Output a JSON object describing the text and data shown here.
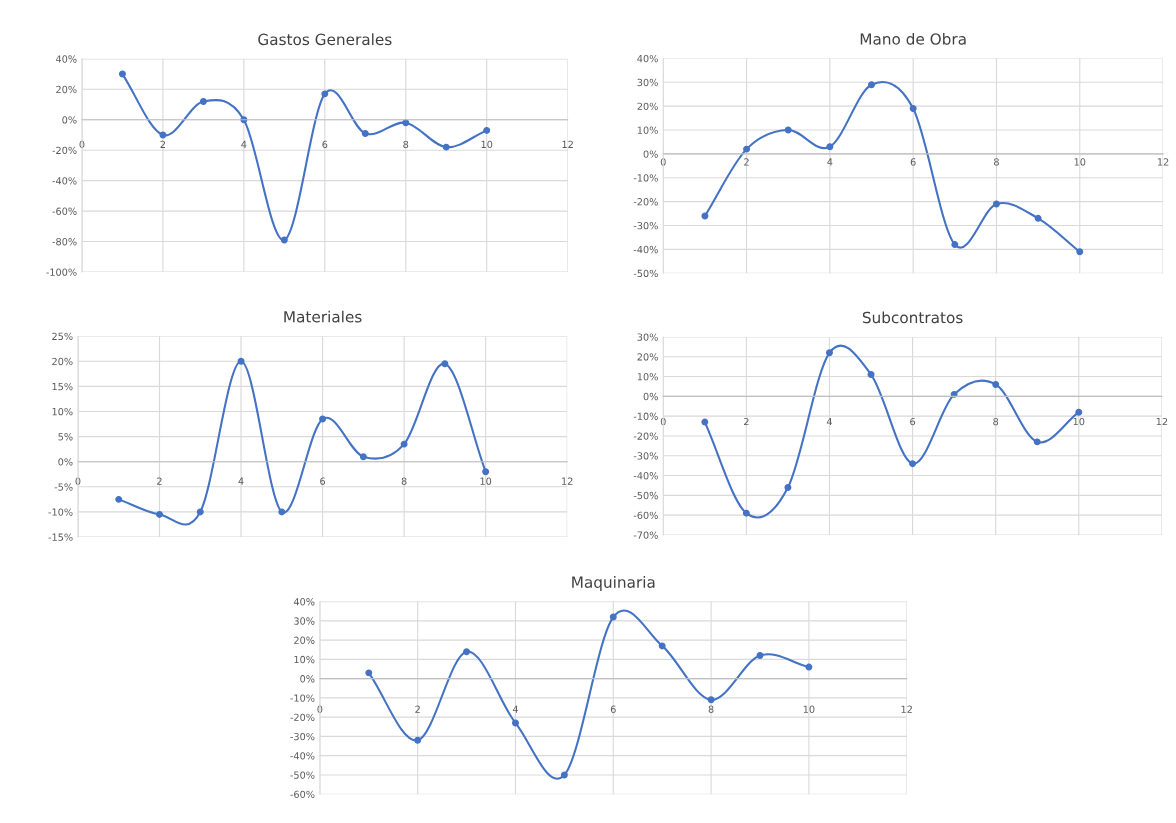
{
  "chart_data": [
    {
      "type": "line",
      "title": "Gastos Generales",
      "x": [
        1,
        2,
        3,
        4,
        5,
        6,
        7,
        8,
        9,
        10
      ],
      "series": [
        {
          "color": "#4472c4",
          "values": [
            30,
            -10,
            12,
            0,
            -79,
            17,
            -9,
            -2,
            -18,
            -7
          ]
        }
      ],
      "xlim": [
        0,
        12
      ],
      "xticks": [
        0,
        2,
        4,
        6,
        8,
        10,
        12
      ],
      "ylim": [
        -100,
        40
      ],
      "yticks": [
        {
          "value": -100,
          "label": "-100%"
        },
        {
          "value": -80,
          "label": "-80%"
        },
        {
          "value": -60,
          "label": "-60%"
        },
        {
          "value": -40,
          "label": "-40%"
        },
        {
          "value": -20,
          "label": "-20%"
        },
        {
          "value": 0,
          "label": "0%"
        },
        {
          "value": 20,
          "label": "20%"
        },
        {
          "value": 40,
          "label": "40%"
        }
      ],
      "grid": true,
      "marker": "circle"
    },
    {
      "type": "line",
      "title": "Mano de Obra",
      "x": [
        1,
        2,
        3,
        4,
        5,
        6,
        7,
        8,
        9,
        10
      ],
      "series": [
        {
          "color": "#4472c4",
          "values": [
            -26,
            2,
            10,
            3,
            29,
            19,
            -38,
            -21,
            -27,
            -41
          ]
        }
      ],
      "xlim": [
        0,
        12
      ],
      "xticks": [
        0,
        2,
        4,
        6,
        8,
        10,
        12
      ],
      "ylim": [
        -50,
        40
      ],
      "yticks": [
        {
          "value": -50,
          "label": "-50%"
        },
        {
          "value": -40,
          "label": "-40%"
        },
        {
          "value": -30,
          "label": "-30%"
        },
        {
          "value": -20,
          "label": "-20%"
        },
        {
          "value": -10,
          "label": "-10%"
        },
        {
          "value": 0,
          "label": "0%"
        },
        {
          "value": 10,
          "label": "10%"
        },
        {
          "value": 20,
          "label": "20%"
        },
        {
          "value": 30,
          "label": "30%"
        },
        {
          "value": 40,
          "label": "40%"
        }
      ],
      "grid": true,
      "marker": "circle"
    },
    {
      "type": "line",
      "title": "Materiales",
      "x": [
        1,
        2,
        3,
        4,
        5,
        6,
        7,
        8,
        9,
        10
      ],
      "series": [
        {
          "color": "#4472c4",
          "values": [
            -7.5,
            -10.5,
            -10,
            20,
            -10,
            8.5,
            1,
            3.5,
            19.5,
            -2
          ]
        }
      ],
      "xlim": [
        0,
        12
      ],
      "xticks": [
        0,
        2,
        4,
        6,
        8,
        10,
        12
      ],
      "ylim": [
        -15,
        25
      ],
      "yticks": [
        {
          "value": -15,
          "label": "-15%"
        },
        {
          "value": -10,
          "label": "-10%"
        },
        {
          "value": -5,
          "label": "-5%"
        },
        {
          "value": 0,
          "label": "0%"
        },
        {
          "value": 5,
          "label": "5%"
        },
        {
          "value": 10,
          "label": "10%"
        },
        {
          "value": 15,
          "label": "15%"
        },
        {
          "value": 20,
          "label": "20%"
        },
        {
          "value": 25,
          "label": "25%"
        }
      ],
      "grid": true,
      "marker": "circle"
    },
    {
      "type": "line",
      "title": "Subcontratos",
      "x": [
        1,
        2,
        3,
        4,
        5,
        6,
        7,
        8,
        9,
        10
      ],
      "series": [
        {
          "color": "#4472c4",
          "values": [
            -13,
            -59,
            -46,
            22,
            11,
            -34,
            1,
            6,
            -23,
            -8
          ]
        }
      ],
      "xlim": [
        0,
        12
      ],
      "xticks": [
        0,
        2,
        4,
        6,
        8,
        10,
        12
      ],
      "ylim": [
        -70,
        30
      ],
      "yticks": [
        {
          "value": -70,
          "label": "-70%"
        },
        {
          "value": -60,
          "label": "-60%"
        },
        {
          "value": -50,
          "label": "-50%"
        },
        {
          "value": -40,
          "label": "-40%"
        },
        {
          "value": -30,
          "label": "-30%"
        },
        {
          "value": -20,
          "label": "-20%"
        },
        {
          "value": -10,
          "label": "-10%"
        },
        {
          "value": 0,
          "label": "0%"
        },
        {
          "value": 10,
          "label": "10%"
        },
        {
          "value": 20,
          "label": "20%"
        },
        {
          "value": 30,
          "label": "30%"
        }
      ],
      "grid": true,
      "marker": "circle"
    },
    {
      "type": "line",
      "title": "Maquinaria",
      "x": [
        1,
        2,
        3,
        4,
        5,
        6,
        7,
        8,
        9,
        10
      ],
      "series": [
        {
          "color": "#4472c4",
          "values": [
            3,
            -32,
            14,
            -23,
            -50,
            32,
            17,
            -11,
            12,
            6
          ]
        }
      ],
      "xlim": [
        0,
        12
      ],
      "xticks": [
        0,
        2,
        4,
        6,
        8,
        10,
        12
      ],
      "ylim": [
        -60,
        40
      ],
      "yticks": [
        {
          "value": -60,
          "label": "-60%"
        },
        {
          "value": -50,
          "label": "-50%"
        },
        {
          "value": -40,
          "label": "-40%"
        },
        {
          "value": -30,
          "label": "-30%"
        },
        {
          "value": -20,
          "label": "-20%"
        },
        {
          "value": -10,
          "label": "-10%"
        },
        {
          "value": 0,
          "label": "0%"
        },
        {
          "value": 10,
          "label": "10%"
        },
        {
          "value": 20,
          "label": "20%"
        },
        {
          "value": 30,
          "label": "30%"
        },
        {
          "value": 40,
          "label": "40%"
        }
      ],
      "grid": true,
      "marker": "circle"
    }
  ]
}
